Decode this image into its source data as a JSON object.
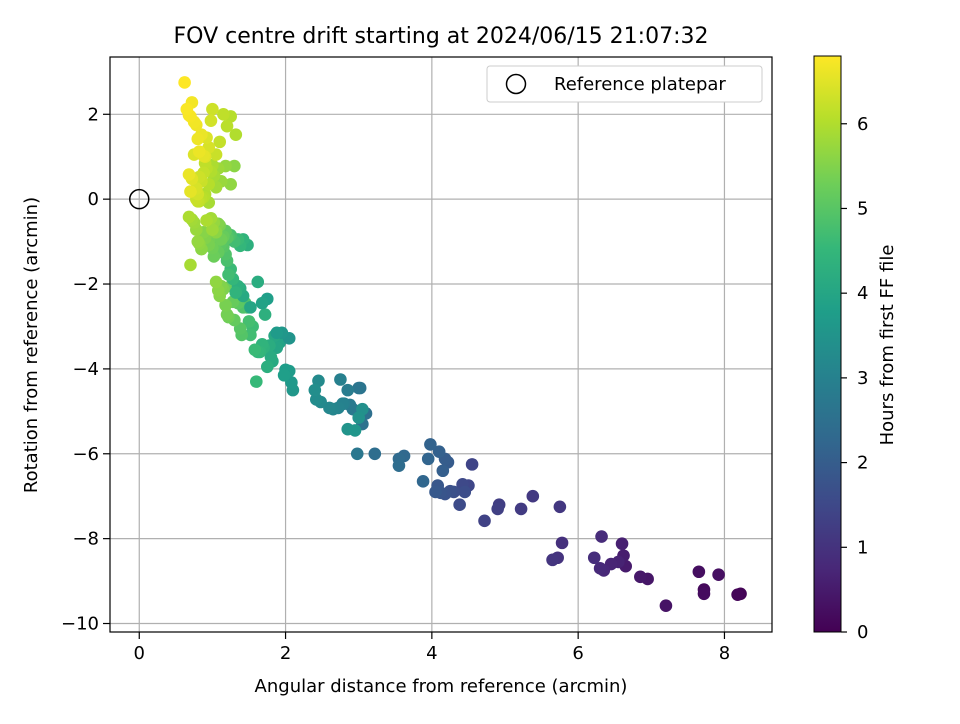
{
  "chart_data": {
    "type": "scatter",
    "title": "FOV centre drift starting at 2024/06/15 21:07:32",
    "xlabel": "Angular distance from reference (arcmin)",
    "ylabel": "Rotation from reference (arcmin)",
    "xlim": [
      -0.4,
      8.65
    ],
    "ylim": [
      -10.2,
      3.35
    ],
    "x_ticks": [
      0,
      2,
      4,
      6,
      8
    ],
    "x_tick_labels": [
      "0",
      "2",
      "4",
      "6",
      "8"
    ],
    "y_ticks": [
      2,
      0,
      -2,
      -4,
      -6,
      -8,
      -10
    ],
    "y_tick_labels": [
      "2",
      "0",
      "−2",
      "−4",
      "−6",
      "−8",
      "−10"
    ],
    "grid": true,
    "legend": {
      "position": "top-right",
      "label": "Reference platepar"
    },
    "reference_point": {
      "x": 0,
      "y": 0
    },
    "colorbar": {
      "label": "Hours from first FF file",
      "min": 0,
      "max": 6.8,
      "ticks": [
        0,
        1,
        2,
        3,
        4,
        5,
        6
      ],
      "tick_labels": [
        "0",
        "1",
        "2",
        "3",
        "4",
        "5",
        "6"
      ],
      "colormap": [
        "#440154",
        "#482878",
        "#3e4989",
        "#31688e",
        "#26828e",
        "#1f9e89",
        "#35b779",
        "#6ece58",
        "#b5de2b",
        "#fde725"
      ]
    },
    "series": [
      {
        "x": [
          8.22,
          8.18,
          7.72,
          7.72,
          7.65,
          7.92,
          7.2,
          6.95,
          6.85,
          6.65,
          6.62,
          6.6,
          6.55,
          6.45,
          6.35,
          6.3,
          6.32,
          6.22,
          5.78,
          5.72,
          5.65,
          5.75,
          5.38,
          5.22,
          4.92,
          4.9,
          4.72,
          4.55,
          4.5,
          4.42,
          4.38,
          4.45,
          4.3,
          4.25,
          4.18,
          4.12,
          4.08,
          4.05,
          4.22,
          4.18,
          4.15,
          4.1,
          3.98,
          3.95,
          3.88,
          3.62,
          3.55,
          3.55,
          3.22,
          3.1,
          3.05,
          3.02,
          3.0,
          2.98,
          2.92,
          2.88,
          2.85,
          2.8,
          2.75,
          2.78,
          2.72,
          2.65,
          2.6,
          2.48,
          2.45,
          2.42,
          2.4,
          3.05,
          3.0,
          2.85,
          2.95,
          2.1,
          2.08,
          2.05,
          2.0,
          1.98,
          1.95,
          1.92,
          1.9,
          1.88,
          1.85,
          1.82,
          1.8,
          1.78,
          1.75,
          1.72,
          1.7,
          1.68,
          1.65,
          1.62,
          1.6,
          1.58,
          1.55,
          1.52,
          1.5,
          1.48,
          1.45,
          1.42,
          1.4,
          1.38,
          1.35,
          1.32,
          1.3,
          1.28,
          1.25,
          1.22,
          1.2,
          1.18,
          1.15,
          1.12,
          1.1,
          1.08,
          1.05,
          2.05,
          1.95,
          1.88,
          1.75,
          1.68,
          1.52,
          1.42,
          1.38,
          1.35,
          1.32,
          1.28,
          1.25,
          1.22,
          1.2,
          1.18,
          1.15,
          1.12,
          1.1,
          1.08,
          1.05,
          1.02,
          1.0,
          0.98,
          0.95,
          0.92,
          0.9,
          0.88,
          0.85,
          0.82,
          0.8,
          0.78,
          0.75,
          0.72,
          0.7,
          0.68,
          1.62,
          1.48,
          1.42,
          1.38,
          1.35,
          1.3,
          1.25,
          1.22,
          1.2,
          1.18,
          1.15,
          1.12,
          1.1,
          1.08,
          1.05,
          1.02,
          1.0,
          0.98,
          0.95,
          0.92,
          0.9,
          0.88,
          0.85,
          0.82,
          0.8,
          0.78,
          0.75,
          1.3,
          1.25,
          1.18,
          1.12,
          1.08,
          1.05,
          1.02,
          1.0,
          0.98,
          0.95,
          0.92,
          0.9,
          0.88,
          0.85,
          0.82,
          0.8,
          0.78,
          0.75,
          0.72,
          0.7,
          0.68,
          1.32,
          1.25,
          1.2,
          1.15,
          1.1,
          1.05,
          1.0,
          0.98,
          0.95,
          0.92,
          0.9,
          0.88,
          0.85,
          0.82,
          0.8,
          0.78,
          0.75,
          0.72,
          0.7,
          0.68,
          0.65,
          0.62
        ],
        "y": [
          -9.3,
          -9.32,
          -9.2,
          -9.3,
          -8.78,
          -8.85,
          -9.58,
          -8.95,
          -8.9,
          -8.65,
          -8.4,
          -8.12,
          -8.55,
          -8.6,
          -8.75,
          -8.7,
          -7.95,
          -8.45,
          -8.1,
          -8.45,
          -8.5,
          -7.25,
          -7.0,
          -7.3,
          -7.2,
          -7.3,
          -7.58,
          -6.25,
          -6.75,
          -6.72,
          -7.2,
          -6.9,
          -6.9,
          -6.88,
          -6.95,
          -6.92,
          -6.75,
          -6.9,
          -6.2,
          -6.12,
          -6.4,
          -5.95,
          -5.78,
          -6.12,
          -6.65,
          -6.05,
          -6.12,
          -6.28,
          -6.0,
          -5.05,
          -5.3,
          -4.45,
          -4.45,
          -6.0,
          -4.95,
          -4.85,
          -4.5,
          -4.82,
          -4.25,
          -4.82,
          -4.92,
          -4.95,
          -4.92,
          -4.78,
          -4.28,
          -4.72,
          -4.5,
          -4.95,
          -5.15,
          -5.42,
          -5.45,
          -4.5,
          -4.32,
          -4.05,
          -4.02,
          -4.15,
          -3.22,
          -3.38,
          -3.3,
          -3.5,
          -3.22,
          -3.82,
          -3.72,
          -3.45,
          -3.95,
          -2.72,
          -3.5,
          -3.42,
          -3.6,
          -3.6,
          -4.3,
          -3.55,
          -3.0,
          -3.2,
          -2.88,
          -2.55,
          -2.45,
          -2.55,
          -3.2,
          -3.05,
          -2.45,
          -2.2,
          -2.85,
          -2.42,
          -2.05,
          -2.78,
          -2.72,
          -2.5,
          -2.12,
          -2.05,
          -2.28,
          -2.15,
          -1.95,
          -3.28,
          -3.15,
          -3.15,
          -2.35,
          -2.45,
          -2.55,
          -2.28,
          -2.1,
          -2.05,
          -2.2,
          -1.88,
          -1.65,
          -1.78,
          -1.45,
          -1.3,
          -1.12,
          -1.05,
          -0.95,
          -1.25,
          -1.02,
          -1.35,
          -1.15,
          -0.9,
          -1.08,
          -0.82,
          -0.92,
          -0.78,
          -1.18,
          -1.05,
          -1.0,
          -0.72,
          -0.55,
          -0.48,
          -1.55,
          -0.42,
          -1.95,
          -1.08,
          -0.95,
          -1.1,
          -0.95,
          -1.0,
          -0.85,
          -0.88,
          -0.92,
          -0.75,
          -0.88,
          -0.95,
          -0.62,
          -0.58,
          -0.78,
          -0.55,
          -0.72,
          -0.45,
          -0.08,
          -0.5,
          0.12,
          0.05,
          0.02,
          -0.05,
          -0.05,
          0.0,
          0.15,
          0.78,
          0.35,
          0.78,
          0.42,
          0.72,
          0.28,
          0.55,
          0.8,
          0.65,
          0.35,
          0.72,
          0.85,
          0.62,
          0.42,
          0.52,
          0.12,
          0.25,
          1.05,
          0.48,
          0.18,
          0.58,
          1.52,
          1.95,
          1.72,
          2.0,
          1.35,
          1.05,
          2.12,
          1.85,
          1.22,
          1.45,
          1.0,
          1.02,
          1.52,
          1.12,
          1.42,
          1.75,
          1.82,
          2.28,
          1.95,
          1.98,
          2.12,
          2.75
        ],
        "hours": [
          0.05,
          0.1,
          0.15,
          0.2,
          0.25,
          0.3,
          0.35,
          0.4,
          0.45,
          0.5,
          0.55,
          0.6,
          0.65,
          0.7,
          0.75,
          0.8,
          0.85,
          0.9,
          0.95,
          1.0,
          1.05,
          1.1,
          1.15,
          1.2,
          1.25,
          1.3,
          1.35,
          1.4,
          1.45,
          1.5,
          1.55,
          1.6,
          1.65,
          1.7,
          1.75,
          1.8,
          1.85,
          1.9,
          1.95,
          2.0,
          2.05,
          2.1,
          2.15,
          2.2,
          2.25,
          2.3,
          2.35,
          2.4,
          2.45,
          2.5,
          2.55,
          2.6,
          2.65,
          2.7,
          2.75,
          2.8,
          2.85,
          2.9,
          2.95,
          3.0,
          3.05,
          3.1,
          3.15,
          3.2,
          3.25,
          3.3,
          3.35,
          3.4,
          3.45,
          3.5,
          3.55,
          3.6,
          3.65,
          3.7,
          3.75,
          3.8,
          3.85,
          3.9,
          3.95,
          4.0,
          4.05,
          4.1,
          4.15,
          4.2,
          4.25,
          4.3,
          4.35,
          4.4,
          4.45,
          4.5,
          4.55,
          4.6,
          4.65,
          4.7,
          4.75,
          4.8,
          4.85,
          4.9,
          4.95,
          5.0,
          5.05,
          5.1,
          5.15,
          5.2,
          5.25,
          5.3,
          5.35,
          5.4,
          5.45,
          5.5,
          5.55,
          5.6,
          5.65,
          3.5,
          3.6,
          3.7,
          3.8,
          3.9,
          4.0,
          4.1,
          4.2,
          4.3,
          4.4,
          4.5,
          4.6,
          4.7,
          4.8,
          4.9,
          5.0,
          5.05,
          5.1,
          5.15,
          5.2,
          5.25,
          5.3,
          5.35,
          5.4,
          5.45,
          5.5,
          5.55,
          5.6,
          5.65,
          5.7,
          5.75,
          5.8,
          5.85,
          5.9,
          5.95,
          4.2,
          4.3,
          4.4,
          4.5,
          4.6,
          4.7,
          4.8,
          4.9,
          5.0,
          5.1,
          5.2,
          5.3,
          5.4,
          5.5,
          5.6,
          5.7,
          5.8,
          5.85,
          5.9,
          5.95,
          6.0,
          6.05,
          6.1,
          6.15,
          6.2,
          6.25,
          6.3,
          5.6,
          5.65,
          5.7,
          5.75,
          5.8,
          5.85,
          5.9,
          5.95,
          6.0,
          6.05,
          6.1,
          6.15,
          6.2,
          6.25,
          6.3,
          6.35,
          6.4,
          6.45,
          6.5,
          6.55,
          6.6,
          6.0,
          6.05,
          6.1,
          6.15,
          6.2,
          6.25,
          6.3,
          6.35,
          6.4,
          6.45,
          6.5,
          6.55,
          6.6,
          6.62,
          6.64,
          6.66,
          6.68,
          6.7,
          6.72,
          6.74,
          6.76,
          6.8
        ]
      }
    ]
  }
}
